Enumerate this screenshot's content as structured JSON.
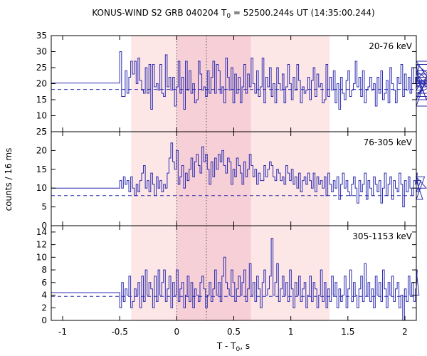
{
  "chart_data": {
    "type": "line",
    "title_main": "KONUS-WIND S2 GRB 040204 T",
    "title_sub": "0",
    "title_rest": " = 52500.244s UT (14:35:00.244)",
    "xlabel_main": "T - T",
    "xlabel_sub": "0",
    "xlabel_rest": ", s",
    "ylabel": "counts / 16 ms",
    "xlim": [
      -1.1,
      2.1
    ],
    "xticks": [
      -1,
      -0.5,
      0,
      0.5,
      1,
      1.5,
      2
    ],
    "xtick_labels": [
      "-1",
      "-0.5",
      "0",
      "0.5",
      "1",
      "1.5",
      "2"
    ],
    "grid": false,
    "shaded_regions": [
      {
        "x0": -0.4,
        "x1": 1.34,
        "color": "#fde6e6"
      },
      {
        "x0": 0.0,
        "x1": 0.65,
        "color": "#f7cfd6"
      }
    ],
    "vlines": [
      0.0,
      0.26
    ],
    "panels": [
      {
        "label": "20-76 keV",
        "ylim": [
          5,
          35
        ],
        "yticks": [
          5,
          10,
          15,
          20,
          25,
          30,
          35
        ],
        "background": 18.2,
        "pre_level": 20.2,
        "step_start": -0.5,
        "step_width": 0.016,
        "values": [
          30,
          16,
          16,
          24,
          17,
          22,
          27,
          23,
          27,
          20,
          28,
          21,
          18,
          17,
          25,
          17,
          26,
          12,
          26,
          19,
          20,
          18,
          26,
          17,
          16,
          29,
          19,
          22,
          18,
          22,
          13,
          19,
          27,
          17,
          22,
          12,
          27,
          18,
          24,
          17,
          20,
          14,
          15,
          27,
          23,
          18,
          19,
          16,
          24,
          17,
          22,
          27,
          17,
          26,
          24,
          17,
          19,
          14,
          28,
          22,
          18,
          25,
          14,
          23,
          17,
          22,
          14,
          19,
          26,
          17,
          23,
          19,
          28,
          20,
          17,
          24,
          16,
          19,
          28,
          14,
          22,
          19,
          25,
          16,
          20,
          14,
          25,
          20,
          18,
          23,
          14,
          19,
          26,
          20,
          15,
          22,
          18,
          26,
          21,
          14,
          19,
          17,
          18,
          22,
          15,
          21,
          25,
          16,
          23,
          19,
          20,
          14,
          15,
          26,
          16,
          22,
          18,
          24,
          14,
          20,
          12,
          22,
          17,
          15,
          21,
          24,
          16,
          18,
          20,
          27,
          19,
          22,
          16,
          24,
          14,
          18,
          19,
          22,
          18,
          20,
          13,
          22,
          17,
          24,
          15,
          17,
          21,
          14,
          25,
          20,
          18,
          14,
          22,
          20,
          26,
          16,
          23,
          18,
          22,
          17,
          25,
          20,
          22,
          19,
          26,
          18,
          21,
          24,
          15,
          22,
          13,
          27,
          19,
          23,
          16,
          26,
          20,
          24,
          17,
          21,
          15
        ]
      },
      {
        "label": "76-305 keV",
        "ylim": [
          0,
          25
        ],
        "yticks": [
          0,
          5,
          10,
          15,
          20,
          25
        ],
        "background": 8.0,
        "pre_level": 10.0,
        "step_start": -0.5,
        "step_width": 0.016,
        "values": [
          12,
          10,
          13,
          11,
          12,
          9,
          13,
          10,
          8,
          11,
          9,
          12,
          14,
          16,
          10,
          12,
          9,
          14,
          11,
          8,
          13,
          10,
          12,
          9,
          11,
          10,
          14,
          18,
          22,
          17,
          15,
          20,
          11,
          13,
          16,
          10,
          14,
          12,
          15,
          18,
          13,
          17,
          19,
          16,
          14,
          21,
          17,
          19,
          15,
          11,
          17,
          13,
          18,
          15,
          19,
          17,
          20,
          16,
          14,
          18,
          17,
          11,
          15,
          13,
          18,
          16,
          14,
          11,
          17,
          13,
          15,
          19,
          16,
          13,
          15,
          11,
          14,
          12,
          12,
          16,
          13,
          15,
          17,
          16,
          13,
          12,
          15,
          14,
          12,
          13,
          11,
          16,
          14,
          12,
          15,
          11,
          13,
          10,
          14,
          9,
          12,
          13,
          11,
          14,
          12,
          10,
          14,
          9,
          13,
          11,
          12,
          10,
          13,
          8,
          14,
          11,
          9,
          12,
          10,
          13,
          7,
          11,
          14,
          10,
          12,
          9,
          8,
          11,
          13,
          10,
          6,
          12,
          9,
          11,
          14,
          7,
          12,
          10,
          8,
          13,
          11,
          9,
          12,
          6,
          10,
          14,
          8,
          11,
          13,
          7,
          12,
          10,
          9,
          14,
          11,
          5,
          12,
          9,
          13,
          10,
          8,
          12,
          11,
          14,
          9,
          12,
          7,
          13,
          10
        ]
      },
      {
        "label": "305-1153 keV",
        "ylim": [
          0,
          15
        ],
        "yticks": [
          0,
          2,
          4,
          6,
          8,
          10,
          12,
          14
        ],
        "background": 3.8,
        "pre_level": 4.4,
        "step_start": -0.5,
        "step_width": 0.016,
        "values": [
          2,
          6,
          3,
          5,
          4,
          7,
          2,
          3,
          5,
          4,
          6,
          2,
          7,
          3,
          8,
          4,
          6,
          5,
          2,
          7,
          3,
          8,
          4,
          6,
          8,
          3,
          5,
          7,
          2,
          6,
          4,
          8,
          3,
          5,
          6,
          2,
          4,
          7,
          3,
          6,
          2,
          5,
          4,
          3,
          6,
          7,
          5,
          2,
          4,
          6,
          3,
          5,
          8,
          4,
          6,
          3,
          7,
          10,
          6,
          5,
          4,
          8,
          6,
          3,
          5,
          7,
          4,
          6,
          8,
          3,
          5,
          9,
          4,
          6,
          3,
          7,
          5,
          2,
          6,
          8,
          4,
          5,
          7,
          13,
          4,
          6,
          9,
          3,
          5,
          7,
          4,
          6,
          3,
          8,
          5,
          2,
          6,
          4,
          7,
          3,
          5,
          6,
          2,
          4,
          7,
          3,
          6,
          5,
          2,
          4,
          8,
          3,
          6,
          2,
          5,
          3,
          7,
          4,
          6,
          2,
          5,
          3,
          4,
          7,
          2,
          5,
          8,
          3,
          6,
          4,
          2,
          5,
          7,
          3,
          9,
          4,
          6,
          3,
          5,
          2,
          7,
          4,
          6,
          3,
          8,
          5,
          2,
          6,
          4,
          7,
          3,
          5,
          6,
          2,
          4,
          0,
          5,
          3,
          7,
          4,
          6,
          3,
          5,
          8,
          4
        ]
      }
    ]
  }
}
